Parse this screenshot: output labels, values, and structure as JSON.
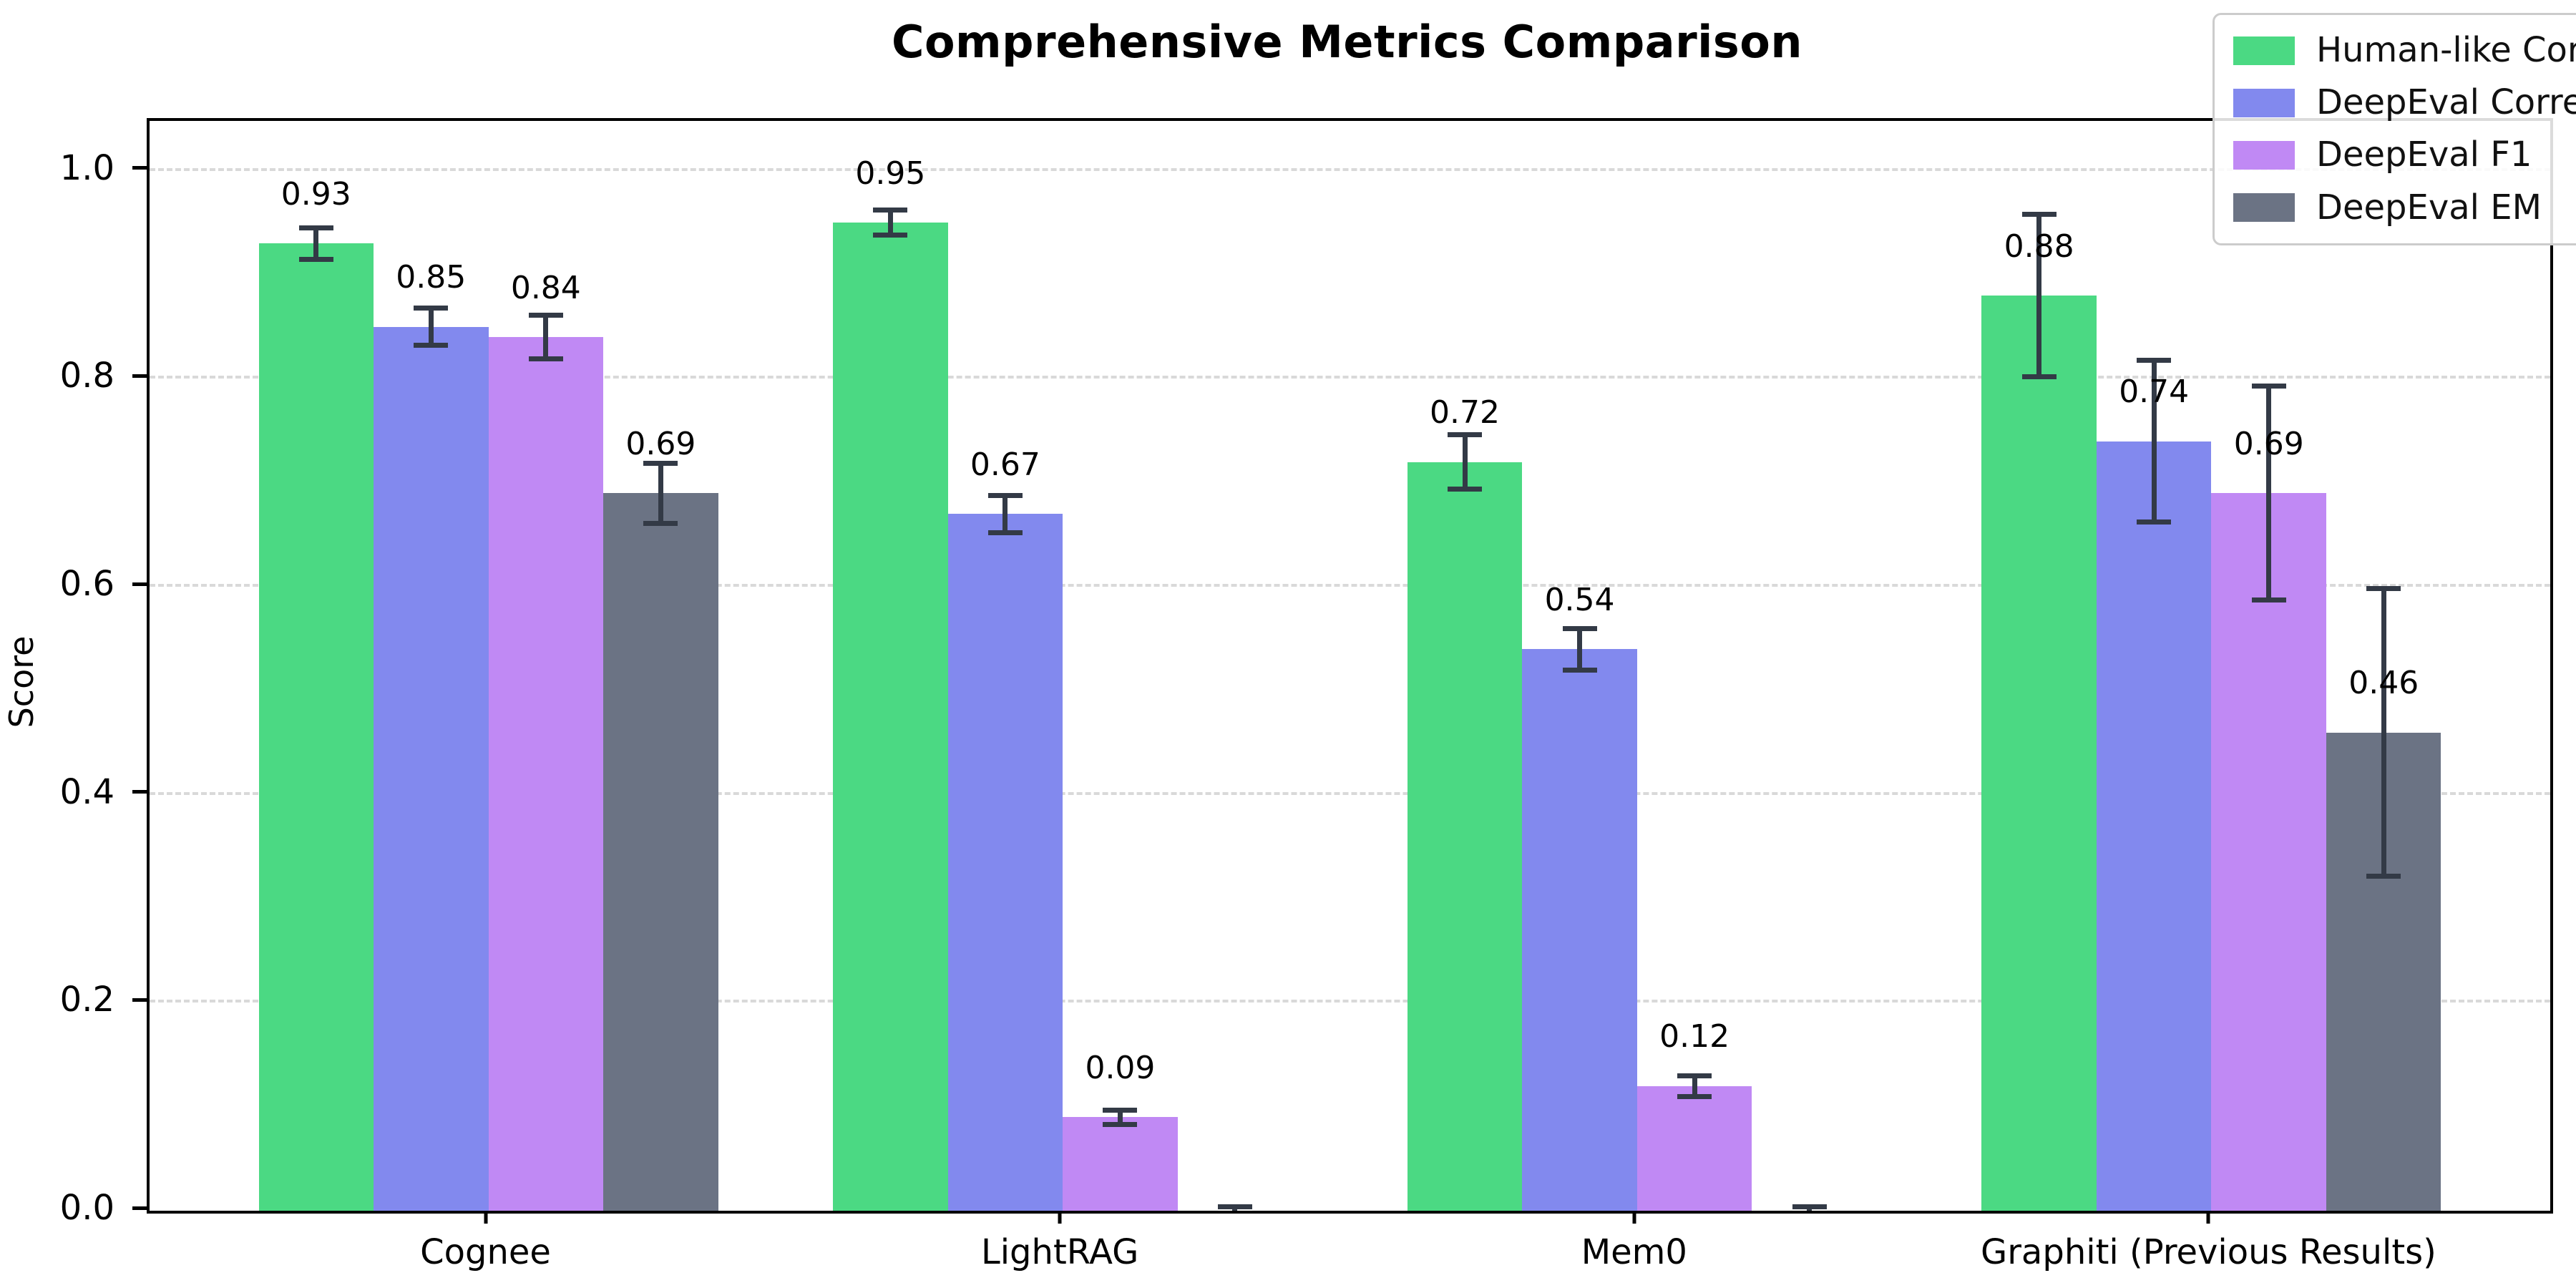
{
  "chart_data": {
    "type": "bar",
    "title": "Comprehensive Metrics Comparison",
    "ylabel": "Score",
    "xlabel": "",
    "categories": [
      "Cognee",
      "LightRAG",
      "Mem0",
      "Graphiti (Previous Results)"
    ],
    "series": [
      {
        "name": "Human-like Correctness",
        "color": "#4bd983",
        "values": [
          0.93,
          0.95,
          0.72,
          0.88
        ],
        "errors": [
          0.015,
          0.012,
          0.026,
          0.078
        ],
        "labels": [
          "0.93",
          "0.95",
          "0.72",
          "0.88"
        ]
      },
      {
        "name": "DeepEval Correctness",
        "color": "#8289ee",
        "values": [
          0.85,
          0.67,
          0.54,
          0.74
        ],
        "errors": [
          0.018,
          0.018,
          0.02,
          0.078
        ],
        "labels": [
          "0.85",
          "0.67",
          "0.54",
          "0.74"
        ]
      },
      {
        "name": "DeepEval F1",
        "color": "#c089f4",
        "values": [
          0.84,
          0.09,
          0.12,
          0.69
        ],
        "errors": [
          0.021,
          0.007,
          0.01,
          0.103
        ],
        "labels": [
          "0.84",
          "0.09",
          "0.12",
          "0.69"
        ]
      },
      {
        "name": "DeepEval EM",
        "color": "#6b7384",
        "values": [
          0.69,
          0.0,
          0.0,
          0.46
        ],
        "errors": [
          0.029,
          0.004,
          0.004,
          0.138
        ],
        "labels": [
          "0.69",
          "",
          "",
          "0.46"
        ]
      }
    ],
    "yticks": [
      "0.0",
      "0.2",
      "0.4",
      "0.6",
      "0.8",
      "1.0"
    ],
    "ytick_values": [
      0.0,
      0.2,
      0.4,
      0.6,
      0.8,
      1.0
    ],
    "ylim": [
      0,
      1.048
    ],
    "xlim": [
      -0.59,
      3.59
    ],
    "bar_width": 0.2,
    "grid": "dashed-horizontal",
    "legend_position": "upper right",
    "errorbar_color": "#333a46",
    "grid_color": "#d9d9d9",
    "background_color": "#ffffff"
  }
}
